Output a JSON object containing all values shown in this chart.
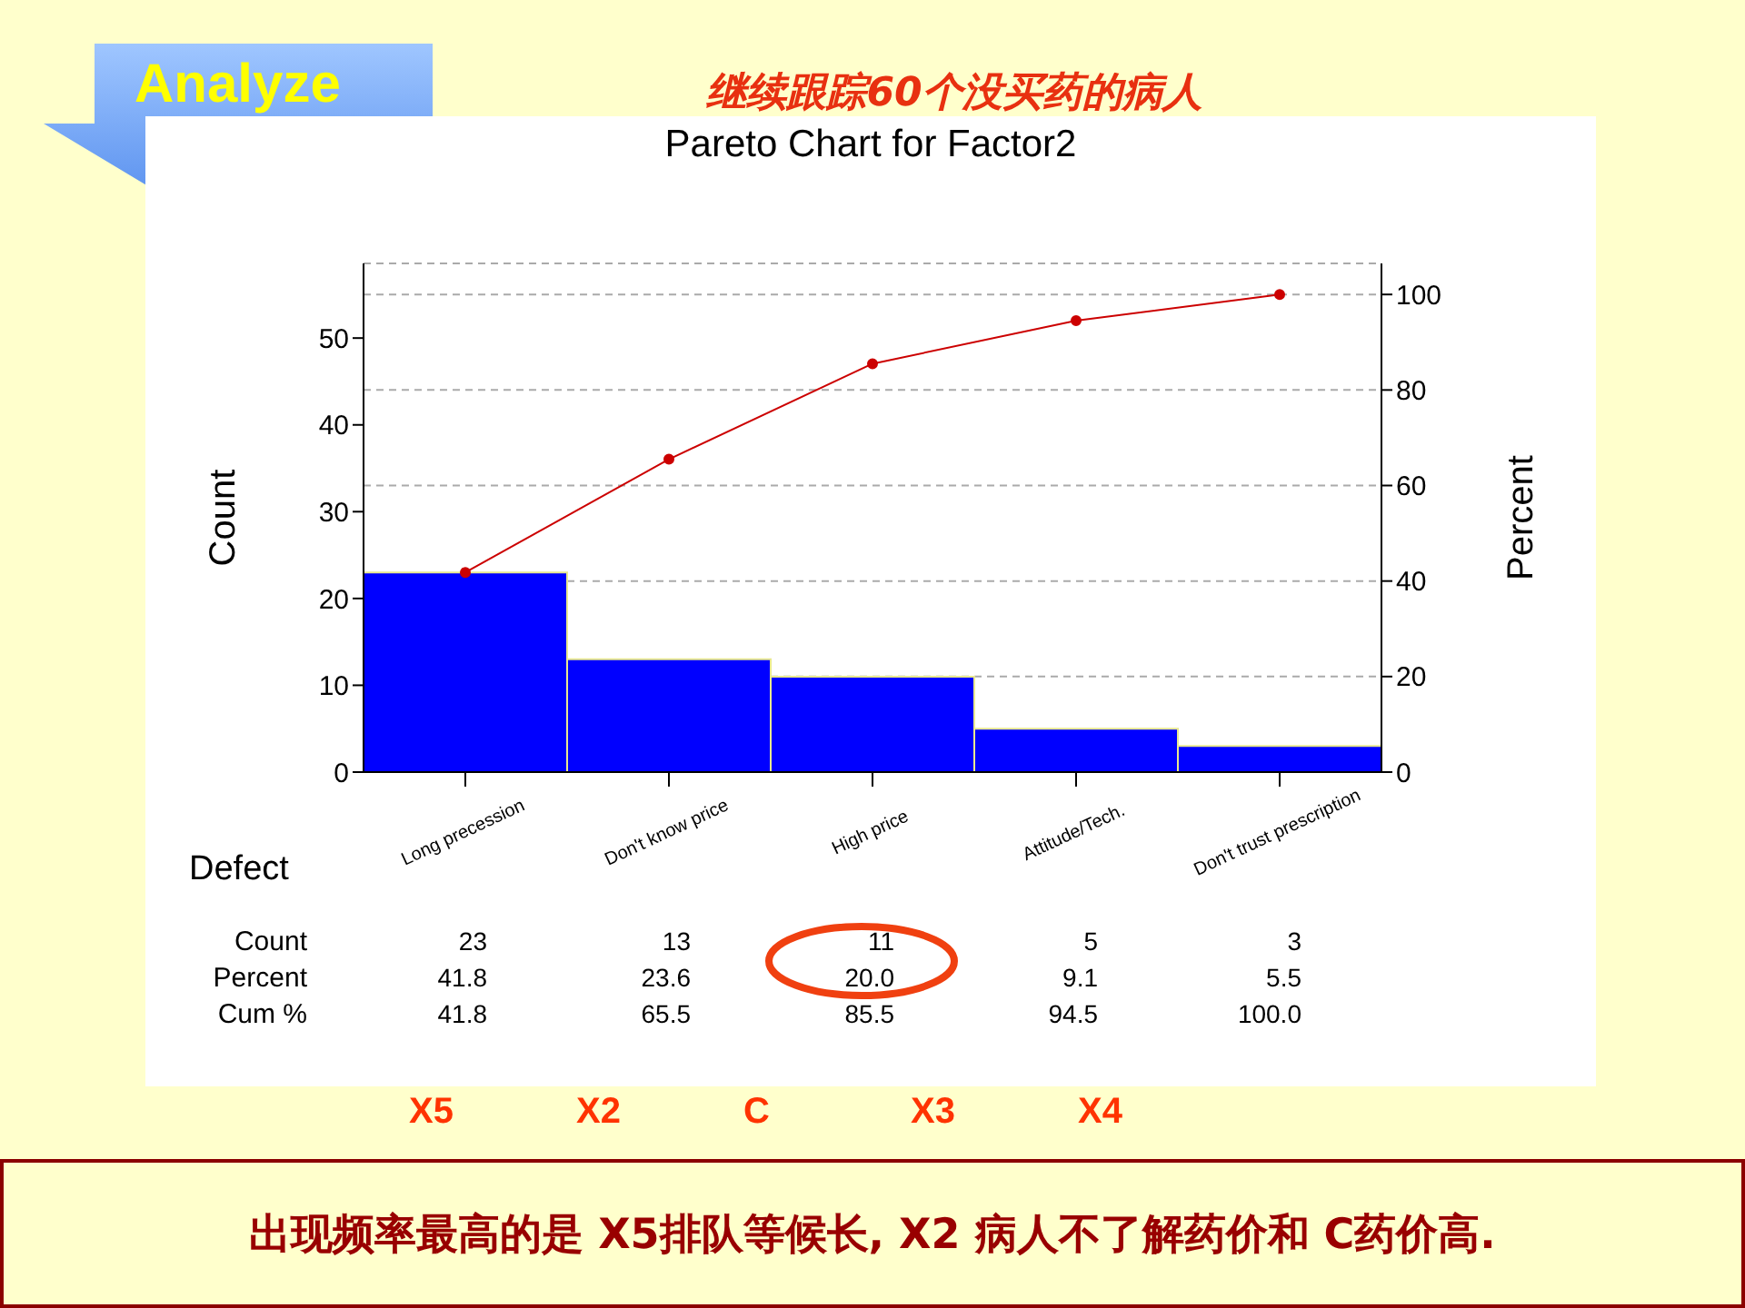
{
  "chart_data": {
    "type": "bar",
    "title": "Pareto Chart for Factor2",
    "subtitle": "继续跟踪60个没买药的病人",
    "xlabel": "Defect",
    "ylabel": "Count",
    "y2label": "Percent",
    "categories": [
      "Long precession",
      "Don't know  price",
      "High price",
      "Attitude/Tech.",
      "Don't trust prescription"
    ],
    "series": [
      {
        "color": "#0000ff",
        "values": [
          23,
          13,
          11,
          5,
          3
        ]
      },
      {
        "type": "line",
        "axis": "y2",
        "color": "#cc0000",
        "values": [
          41.8,
          65.5,
          85.5,
          94.5,
          100.0
        ],
        "value_labels": [
          "41.8",
          "65.5",
          "85.5",
          "94.5",
          "100.0"
        ]
      }
    ],
    "ylim": [
      0,
      58.6
    ],
    "yticks": [
      0,
      10,
      20,
      30,
      40,
      50
    ],
    "y2lim": [
      0,
      106.5
    ],
    "y2ticks": [
      0,
      20,
      40,
      60,
      80,
      100
    ],
    "grid": "y",
    "marker": "circle",
    "line_style": "solid",
    "data_labels": true,
    "legend": false,
    "annotations": [
      "Analyze",
      "X5",
      "X2",
      "C",
      "X3",
      "X4",
      "出现频率最高的是 X5排队等候长, X2 病人不了解药价和 C药价高.",
      "Count",
      "Percent",
      "Cum %",
      "41.8",
      "23.6",
      "20.0",
      "9.1",
      "5.5"
    ]
  }
}
